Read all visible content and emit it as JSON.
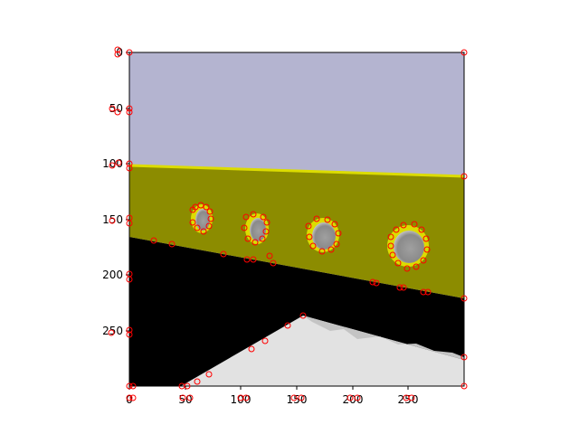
{
  "colors": {
    "sky": "#b4b4d0",
    "band": "#8c8c00",
    "band_edge": "#dcdc00",
    "shadow": "#000000",
    "floor": "#e2e2e2",
    "floor_shade": "#c4c4c4",
    "marker": "#ff0000"
  },
  "axes": {
    "x_ticks": [
      "0",
      "50",
      "100",
      "150",
      "200",
      "250"
    ],
    "y_ticks": [
      "0",
      "50",
      "100",
      "150",
      "200",
      "250"
    ],
    "x_range": [
      0,
      300
    ],
    "y_range": [
      0,
      300
    ]
  }
}
